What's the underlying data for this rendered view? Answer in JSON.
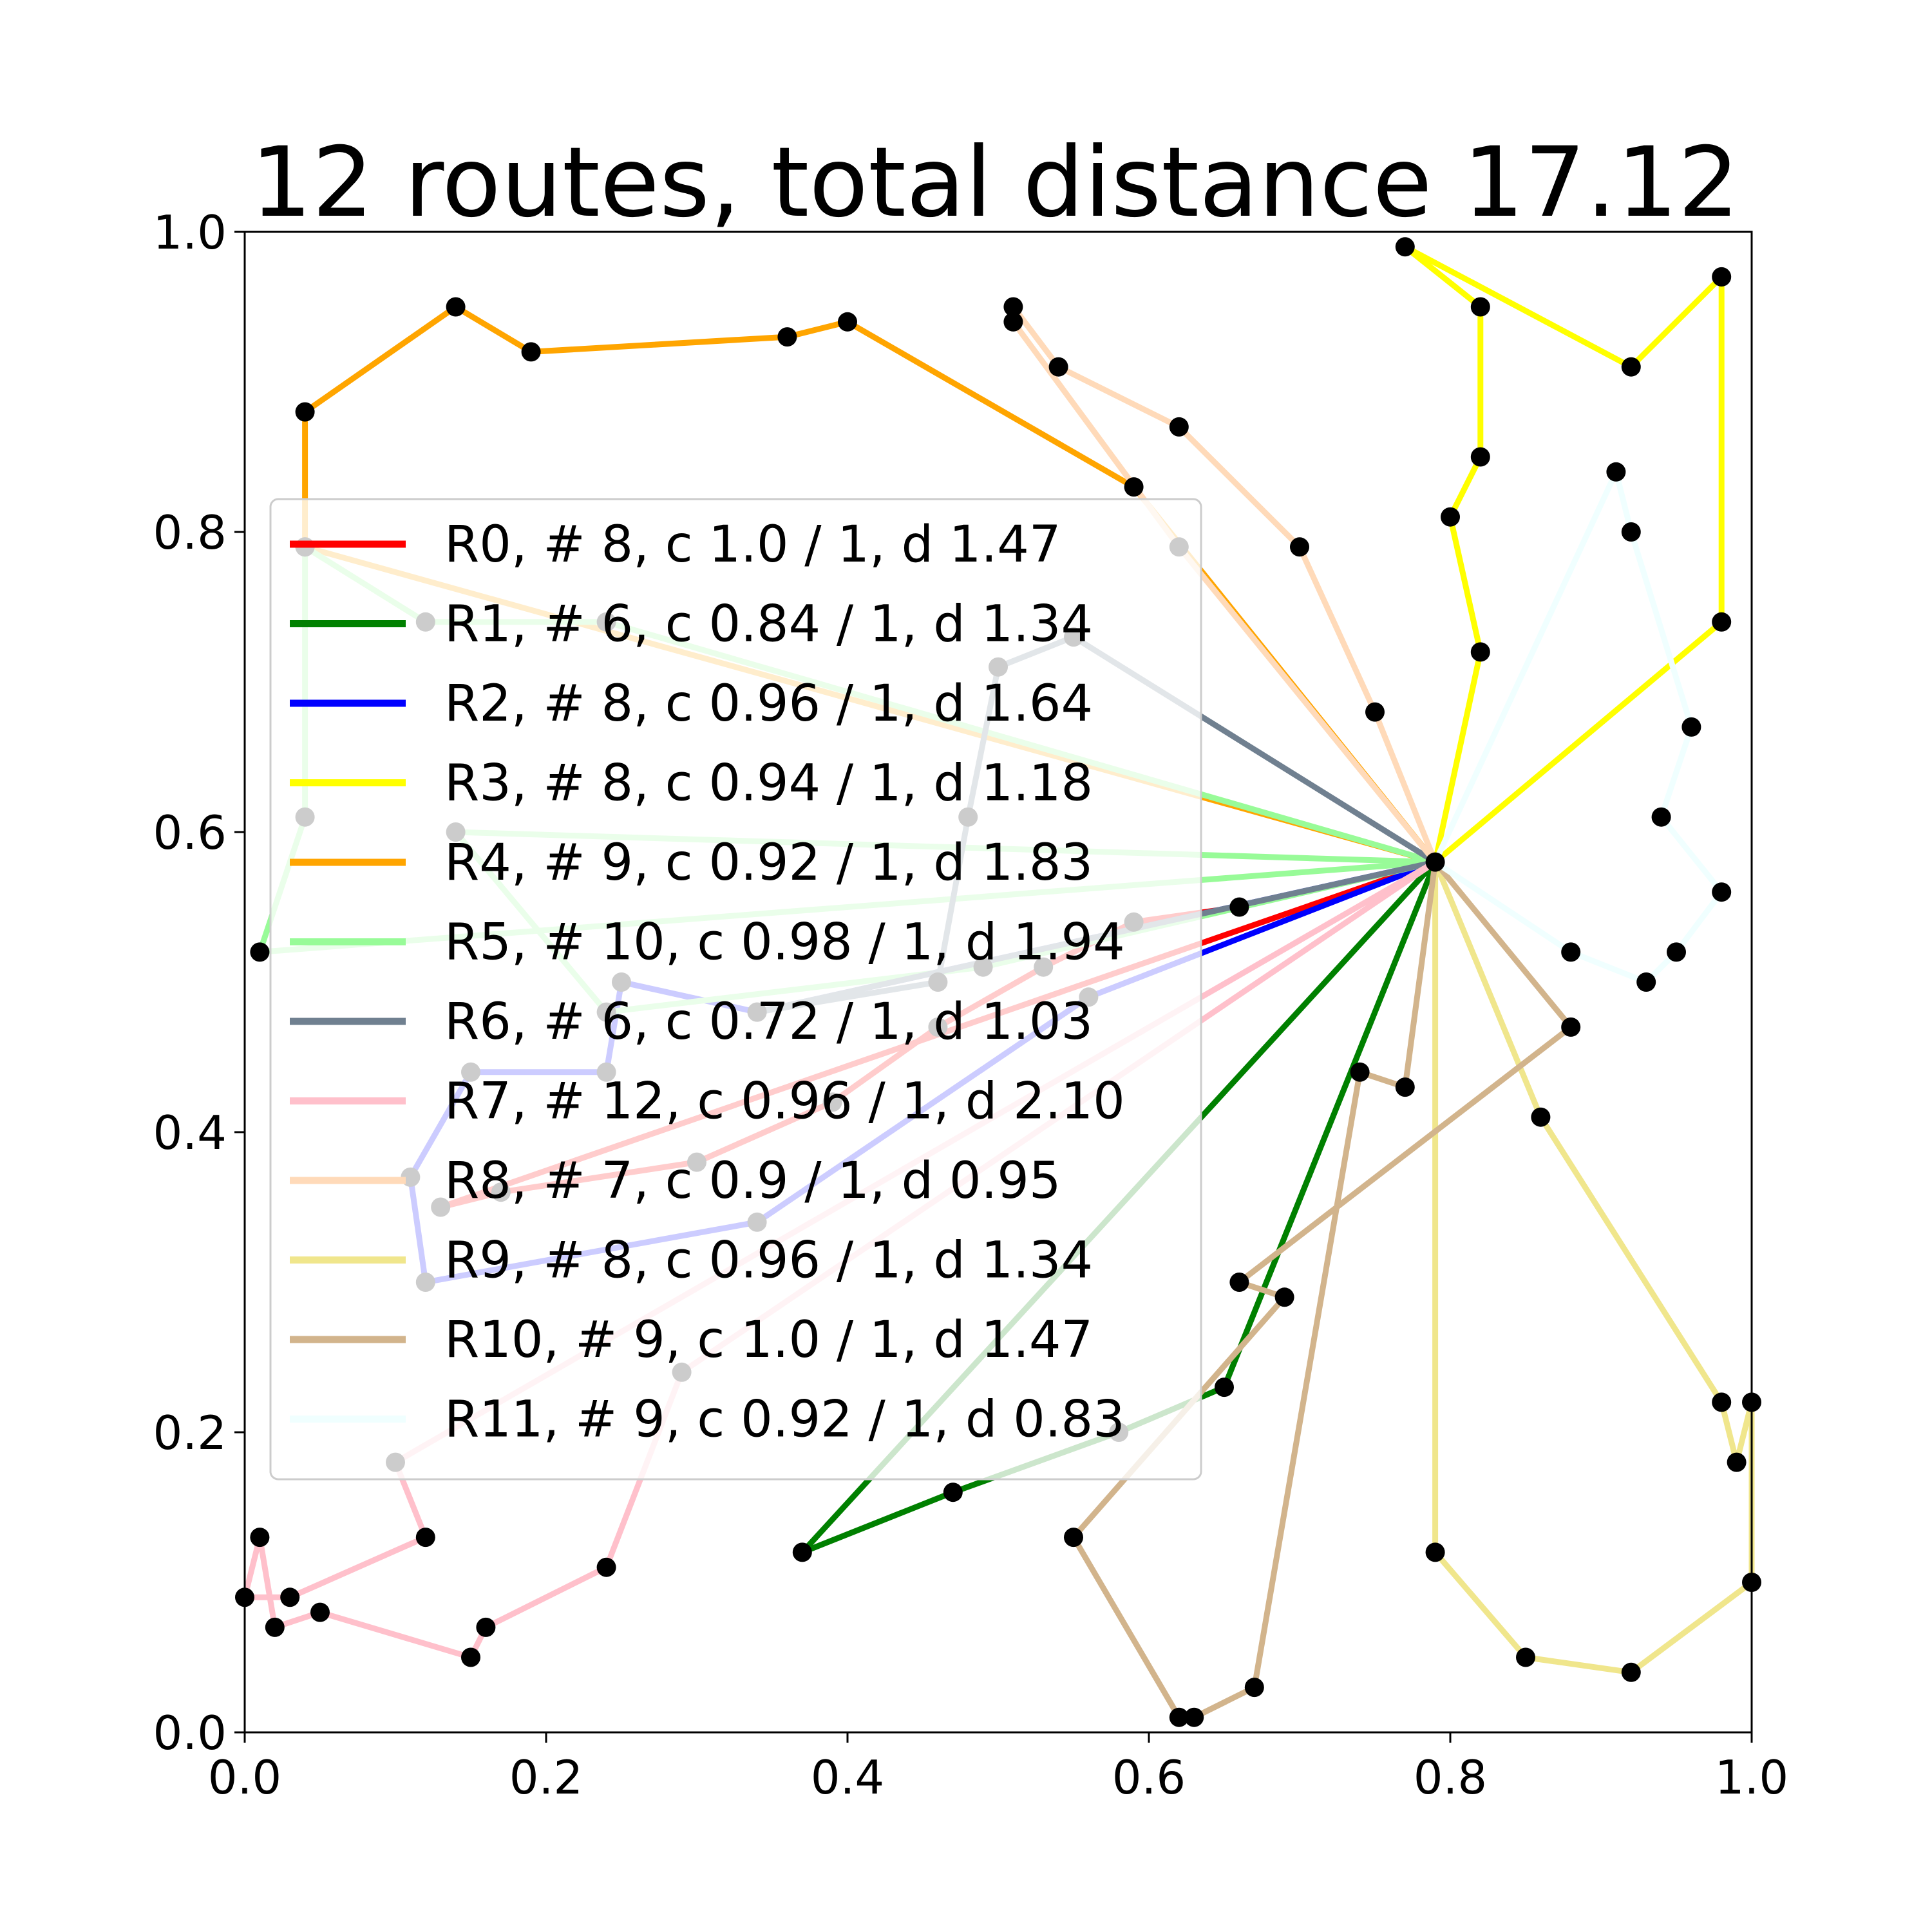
{
  "chart_data": {
    "type": "line",
    "title": "12 routes, total distance 17.12",
    "xlabel": "",
    "ylabel": "",
    "xlim": [
      0,
      1
    ],
    "ylim": [
      0,
      1
    ],
    "x_ticks": [
      "0.0",
      "0.2",
      "0.4",
      "0.6",
      "0.8",
      "1.0"
    ],
    "y_ticks": [
      "0.0",
      "0.2",
      "0.4",
      "0.6",
      "0.8",
      "1.0"
    ],
    "grid": false,
    "legend_position": "center-left",
    "depot": {
      "x": 0.79,
      "y": 0.58
    },
    "series": [
      {
        "name": "R0, # 8, c 1.0 / 1, d 1.47",
        "color": "#ff0000",
        "points": [
          [
            0.79,
            0.58
          ],
          [
            0.66,
            0.55
          ],
          [
            0.59,
            0.54
          ],
          [
            0.53,
            0.51
          ],
          [
            0.46,
            0.47
          ],
          [
            0.39,
            0.42
          ],
          [
            0.3,
            0.38
          ],
          [
            0.17,
            0.36
          ],
          [
            0.13,
            0.35
          ],
          [
            0.79,
            0.58
          ]
        ]
      },
      {
        "name": "R1, # 6, c 0.84 / 1, d 1.34",
        "color": "#008000",
        "points": [
          [
            0.79,
            0.58
          ],
          [
            0.65,
            0.23
          ],
          [
            0.58,
            0.2
          ],
          [
            0.47,
            0.16
          ],
          [
            0.37,
            0.12
          ],
          [
            0.79,
            0.58
          ]
        ]
      },
      {
        "name": "R2, # 8, c 0.96 / 1, d 1.64",
        "color": "#0000ff",
        "points": [
          [
            0.79,
            0.58
          ],
          [
            0.56,
            0.49
          ],
          [
            0.34,
            0.34
          ],
          [
            0.12,
            0.3
          ],
          [
            0.11,
            0.37
          ],
          [
            0.15,
            0.44
          ],
          [
            0.24,
            0.44
          ],
          [
            0.25,
            0.5
          ],
          [
            0.34,
            0.48
          ],
          [
            0.79,
            0.58
          ]
        ]
      },
      {
        "name": "R3, # 8, c 0.94 / 1, d 1.18",
        "color": "#ffff00",
        "points": [
          [
            0.79,
            0.58
          ],
          [
            0.82,
            0.72
          ],
          [
            0.8,
            0.81
          ],
          [
            0.82,
            0.85
          ],
          [
            0.82,
            0.95
          ],
          [
            0.77,
            0.99
          ],
          [
            0.92,
            0.91
          ],
          [
            0.98,
            0.97
          ],
          [
            0.98,
            0.74
          ],
          [
            0.79,
            0.58
          ]
        ]
      },
      {
        "name": "R4, # 9, c 0.92 / 1, d 1.83",
        "color": "#ffa500",
        "points": [
          [
            0.79,
            0.58
          ],
          [
            0.04,
            0.79
          ],
          [
            0.04,
            0.88
          ],
          [
            0.14,
            0.95
          ],
          [
            0.19,
            0.92
          ],
          [
            0.36,
            0.93
          ],
          [
            0.4,
            0.94
          ],
          [
            0.59,
            0.83
          ],
          [
            0.79,
            0.58
          ]
        ]
      },
      {
        "name": "R5, # 10, c 0.98 / 1, d 1.94",
        "color": "#98fb98",
        "points": [
          [
            0.79,
            0.58
          ],
          [
            0.01,
            0.52
          ],
          [
            0.04,
            0.61
          ],
          [
            0.04,
            0.79
          ],
          [
            0.12,
            0.74
          ],
          [
            0.24,
            0.74
          ],
          [
            0.79,
            0.58
          ],
          [
            0.49,
            0.51
          ],
          [
            0.24,
            0.48
          ],
          [
            0.14,
            0.6
          ],
          [
            0.79,
            0.58
          ]
        ]
      },
      {
        "name": "R6, # 6, c 0.72 / 1, d 1.03",
        "color": "#708090",
        "points": [
          [
            0.79,
            0.58
          ],
          [
            0.55,
            0.73
          ],
          [
            0.5,
            0.71
          ],
          [
            0.48,
            0.61
          ],
          [
            0.46,
            0.5
          ],
          [
            0.34,
            0.48
          ],
          [
            0.79,
            0.58
          ]
        ]
      },
      {
        "name": "R7, # 12, c 0.96 / 1, d 2.10",
        "color": "#ffc0cb",
        "points": [
          [
            0.79,
            0.58
          ],
          [
            0.29,
            0.24
          ],
          [
            0.24,
            0.11
          ],
          [
            0.16,
            0.07
          ],
          [
            0.15,
            0.05
          ],
          [
            0.05,
            0.08
          ],
          [
            0.02,
            0.07
          ],
          [
            0.01,
            0.13
          ],
          [
            0.0,
            0.09
          ],
          [
            0.03,
            0.09
          ],
          [
            0.12,
            0.13
          ],
          [
            0.1,
            0.18
          ],
          [
            0.79,
            0.58
          ]
        ]
      },
      {
        "name": "R8, # 7, c 0.9 / 1, d 0.95",
        "color": "#ffdab9",
        "points": [
          [
            0.79,
            0.58
          ],
          [
            0.75,
            0.68
          ],
          [
            0.7,
            0.79
          ],
          [
            0.62,
            0.87
          ],
          [
            0.54,
            0.91
          ],
          [
            0.51,
            0.95
          ],
          [
            0.51,
            0.94
          ],
          [
            0.62,
            0.79
          ],
          [
            0.79,
            0.58
          ]
        ]
      },
      {
        "name": "R9, # 8, c 0.96 / 1, d 1.34",
        "color": "#f0e68c",
        "points": [
          [
            0.79,
            0.58
          ],
          [
            0.86,
            0.41
          ],
          [
            0.98,
            0.22
          ],
          [
            0.99,
            0.18
          ],
          [
            1.0,
            0.22
          ],
          [
            1.0,
            0.1
          ],
          [
            0.92,
            0.04
          ],
          [
            0.85,
            0.05
          ],
          [
            0.79,
            0.12
          ],
          [
            0.79,
            0.58
          ]
        ]
      },
      {
        "name": "R10, # 9, c 1.0 / 1, d 1.47",
        "color": "#d2b48c",
        "points": [
          [
            0.79,
            0.58
          ],
          [
            0.77,
            0.43
          ],
          [
            0.74,
            0.44
          ],
          [
            0.67,
            0.03
          ],
          [
            0.63,
            0.01
          ],
          [
            0.62,
            0.01
          ],
          [
            0.55,
            0.13
          ],
          [
            0.69,
            0.29
          ],
          [
            0.66,
            0.3
          ],
          [
            0.88,
            0.47
          ],
          [
            0.79,
            0.58
          ]
        ]
      },
      {
        "name": "R11, # 9, c 0.92 / 1, d 0.83",
        "color": "#f0ffff",
        "points": [
          [
            0.79,
            0.58
          ],
          [
            0.91,
            0.84
          ],
          [
            0.92,
            0.8
          ],
          [
            0.96,
            0.67
          ],
          [
            0.94,
            0.61
          ],
          [
            0.98,
            0.56
          ],
          [
            0.95,
            0.52
          ],
          [
            0.93,
            0.5
          ],
          [
            0.88,
            0.52
          ],
          [
            0.79,
            0.58
          ]
        ]
      }
    ]
  }
}
